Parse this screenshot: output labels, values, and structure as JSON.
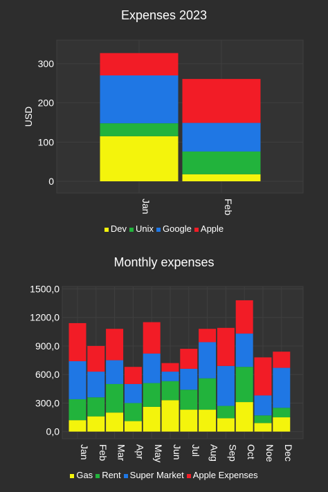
{
  "colors": {
    "background": "#2d2d2d",
    "plot_background": "#333333",
    "grid": "#3f3f3f",
    "axis_text": "#ffffff"
  },
  "chart_data": [
    {
      "type": "bar",
      "stacked": true,
      "orientation": "vertical",
      "title": "Expenses 2023",
      "ylabel": "USD",
      "xlabel": "",
      "categories": [
        "Jan",
        "Feb"
      ],
      "ylim": [
        -30,
        360
      ],
      "yticks": [
        0,
        100,
        200,
        300
      ],
      "ytick_labels": [
        "0",
        "100",
        "200",
        "300"
      ],
      "grid": true,
      "legend_position": "bottom",
      "series": [
        {
          "name": "Dev",
          "color": "#f4f40c",
          "values": [
            115,
            18
          ]
        },
        {
          "name": "Unix",
          "color": "#22b33c",
          "values": [
            33,
            58
          ]
        },
        {
          "name": "Google",
          "color": "#1f77e4",
          "values": [
            122,
            73
          ]
        },
        {
          "name": "Apple",
          "color": "#f21c26",
          "values": [
            57,
            112
          ]
        }
      ]
    },
    {
      "type": "bar",
      "stacked": true,
      "orientation": "vertical",
      "title": "Monthly expenses",
      "xlabel": "",
      "ylabel": "",
      "categories": [
        "Jan",
        "Feb",
        "Mar",
        "Apr",
        "May",
        "Jun",
        "Jul",
        "Aug",
        "Sep",
        "Oct",
        "Noe",
        "Dec"
      ],
      "ylim": [
        -75,
        1525
      ],
      "yticks": [
        0,
        300,
        600,
        900,
        1200,
        1500
      ],
      "ytick_labels": [
        "0,0",
        "300,0",
        "600,0",
        "900,0",
        "1200,0",
        "1500,0"
      ],
      "grid": true,
      "legend_position": "bottom",
      "series": [
        {
          "name": "Gas",
          "color": "#f4f40c",
          "values": [
            120,
            160,
            200,
            110,
            260,
            330,
            230,
            230,
            140,
            310,
            90,
            150
          ]
        },
        {
          "name": "Rent",
          "color": "#22b33c",
          "values": [
            220,
            200,
            300,
            190,
            250,
            200,
            210,
            330,
            130,
            370,
            80,
            100
          ]
        },
        {
          "name": "Super Market",
          "color": "#1f77e4",
          "values": [
            400,
            270,
            250,
            200,
            310,
            100,
            220,
            380,
            420,
            350,
            210,
            420
          ]
        },
        {
          "name": "Apple Expenses",
          "color": "#f21c26",
          "values": [
            400,
            270,
            330,
            180,
            330,
            90,
            210,
            140,
            400,
            350,
            400,
            170
          ]
        }
      ]
    }
  ]
}
